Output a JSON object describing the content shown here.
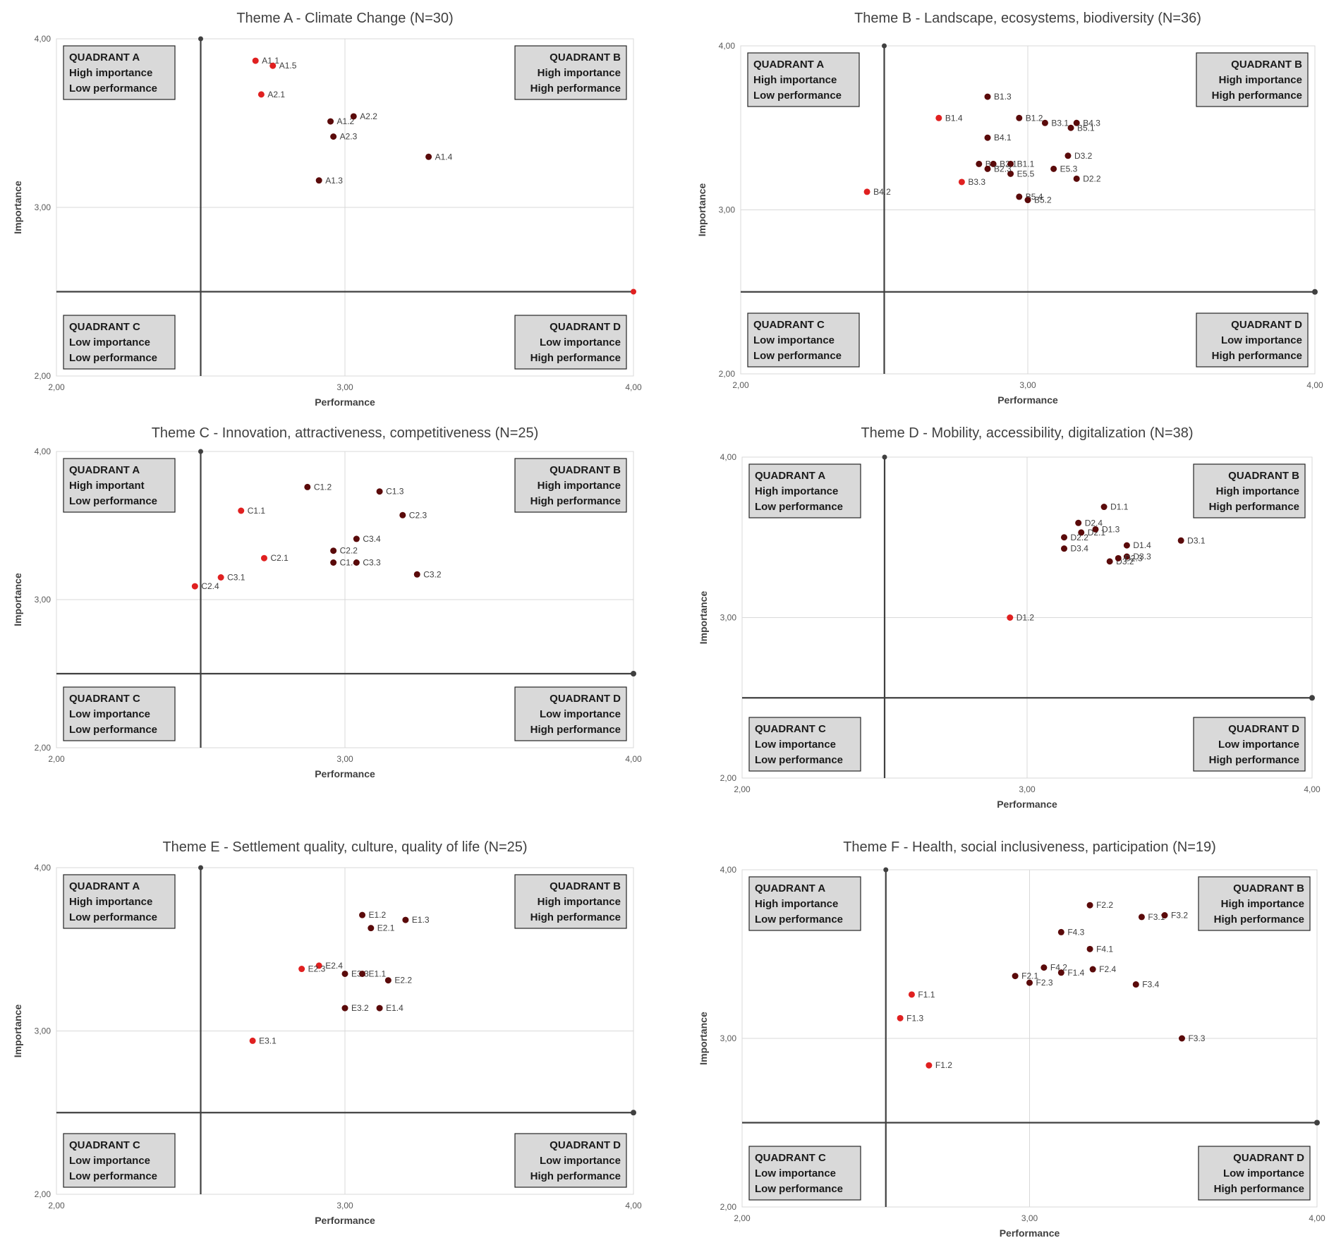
{
  "colors": {
    "dark_point": "#5a0a0a",
    "red_point": "#e02020",
    "grid": "#d9d9d9",
    "axis_line": "#404040",
    "quadrant_fill": "#d9d9d9"
  },
  "chart_data": [
    {
      "type": "scatter",
      "title": "Theme A - Climate Change (N=30)",
      "xlabel": "Performance",
      "ylabel": "Importance",
      "xlim": [
        2,
        4
      ],
      "ylim": [
        2,
        4
      ],
      "xticks": [
        "2,00",
        "3,00",
        "4,00"
      ],
      "yticks": [
        "2,00",
        "3,00",
        "4,00"
      ],
      "divider": {
        "x": 2.5,
        "y": 2.5
      },
      "quadrants": {
        "A": [
          "QUADRANT A",
          "High importance",
          "Low performance"
        ],
        "B": [
          "QUADRANT B",
          "High importance",
          "High performance"
        ],
        "C": [
          "QUADRANT C",
          "Low importance",
          "Low performance"
        ],
        "D": [
          "QUADRANT D",
          "Low importance",
          "High performance"
        ]
      },
      "points": [
        {
          "label": "A1.1",
          "x": 2.69,
          "y": 3.87,
          "color": "red"
        },
        {
          "label": "A1.5",
          "x": 2.75,
          "y": 3.84,
          "color": "red"
        },
        {
          "label": "A2.1",
          "x": 2.71,
          "y": 3.67,
          "color": "red"
        },
        {
          "label": "A1.2",
          "x": 2.95,
          "y": 3.51,
          "color": "dark"
        },
        {
          "label": "A2.2",
          "x": 3.03,
          "y": 3.54,
          "color": "dark"
        },
        {
          "label": "A2.3",
          "x": 2.96,
          "y": 3.42,
          "color": "dark"
        },
        {
          "label": "A1.4",
          "x": 3.29,
          "y": 3.3,
          "color": "dark"
        },
        {
          "label": "A1.3",
          "x": 2.91,
          "y": 3.16,
          "color": "dark"
        }
      ]
    },
    {
      "type": "scatter",
      "title": "Theme B - Landscape, ecosystems, biodiversity (N=36)",
      "xlabel": "Performance",
      "ylabel": "Importance",
      "xlim": [
        2,
        4
      ],
      "ylim": [
        2,
        4
      ],
      "xticks": [
        "2,00",
        "3,00",
        "4,00"
      ],
      "yticks": [
        "2,00",
        "3,00",
        "4,00"
      ],
      "divider": {
        "x": 2.5,
        "y": 2.5
      },
      "quadrants": {
        "A": [
          "QUADRANT A",
          "High importance",
          "Low performance"
        ],
        "B": [
          "QUADRANT B",
          "High importance",
          "High performance"
        ],
        "C": [
          "QUADRANT C",
          "Low importance",
          "Low performance"
        ],
        "D": [
          "QUADRANT D",
          "Low importance",
          "High performance"
        ]
      },
      "points": [
        {
          "label": "B1.3",
          "x": 2.86,
          "y": 3.69,
          "color": "dark"
        },
        {
          "label": "B1.4",
          "x": 2.69,
          "y": 3.56,
          "color": "red"
        },
        {
          "label": "B1.2",
          "x": 2.97,
          "y": 3.56,
          "color": "dark"
        },
        {
          "label": "B3.1",
          "x": 3.06,
          "y": 3.53,
          "color": "dark"
        },
        {
          "label": "B4.3",
          "x": 3.17,
          "y": 3.53,
          "color": "dark"
        },
        {
          "label": "B5.1",
          "x": 3.15,
          "y": 3.5,
          "color": "dark"
        },
        {
          "label": "B4.1",
          "x": 2.86,
          "y": 3.44,
          "color": "dark"
        },
        {
          "label": "D3.2",
          "x": 3.14,
          "y": 3.33,
          "color": "dark"
        },
        {
          "label": "B3...",
          "x": 2.83,
          "y": 3.28,
          "color": "dark"
        },
        {
          "label": "B2.1",
          "x": 2.88,
          "y": 3.28,
          "color": "dark"
        },
        {
          "label": "B1.1",
          "x": 2.94,
          "y": 3.28,
          "color": "dark"
        },
        {
          "label": "E5.3",
          "x": 3.09,
          "y": 3.25,
          "color": "dark"
        },
        {
          "label": "D2.2",
          "x": 3.17,
          "y": 3.19,
          "color": "dark"
        },
        {
          "label": "E5.5",
          "x": 2.94,
          "y": 3.22,
          "color": "dark"
        },
        {
          "label": "B2.3",
          "x": 2.86,
          "y": 3.25,
          "color": "dark"
        },
        {
          "label": "B3.3",
          "x": 2.77,
          "y": 3.17,
          "color": "red"
        },
        {
          "label": "B5.4",
          "x": 2.97,
          "y": 3.08,
          "color": "dark"
        },
        {
          "label": "B5.2",
          "x": 3.0,
          "y": 3.06,
          "color": "dark"
        },
        {
          "label": "B4.2",
          "x": 2.44,
          "y": 3.11,
          "color": "red"
        }
      ]
    },
    {
      "type": "scatter",
      "title": "Theme C - Innovation, attractiveness, competitiveness (N=25)",
      "xlabel": "Performance",
      "ylabel": "Importance",
      "xlim": [
        2,
        4
      ],
      "ylim": [
        2,
        4
      ],
      "xticks": [
        "2,00",
        "3,00",
        "4,00"
      ],
      "yticks": [
        "2,00",
        "3,00",
        "4,00"
      ],
      "divider": {
        "x": 2.5,
        "y": 2.5
      },
      "quadrants": {
        "A": [
          "QUADRANT A",
          "High important",
          "Low performance"
        ],
        "B": [
          "QUADRANT B",
          "High importance",
          "High performance"
        ],
        "C": [
          "QUADRANT C",
          "Low importance",
          "Low performance"
        ],
        "D": [
          "QUADRANT D",
          "Low importance",
          "High performance"
        ]
      },
      "points": [
        {
          "label": "C1.2",
          "x": 2.87,
          "y": 3.76,
          "color": "dark"
        },
        {
          "label": "C1.3",
          "x": 3.12,
          "y": 3.73,
          "color": "dark"
        },
        {
          "label": "C1.1",
          "x": 2.64,
          "y": 3.6,
          "color": "red"
        },
        {
          "label": "C2.3",
          "x": 3.2,
          "y": 3.57,
          "color": "dark"
        },
        {
          "label": "C3.4",
          "x": 3.04,
          "y": 3.41,
          "color": "dark"
        },
        {
          "label": "C2.2",
          "x": 2.96,
          "y": 3.33,
          "color": "dark"
        },
        {
          "label": "C2.1",
          "x": 2.72,
          "y": 3.28,
          "color": "red"
        },
        {
          "label": "C1.4",
          "x": 2.96,
          "y": 3.25,
          "color": "dark"
        },
        {
          "label": "C3.3",
          "x": 3.04,
          "y": 3.25,
          "color": "dark"
        },
        {
          "label": "C3.2",
          "x": 3.25,
          "y": 3.17,
          "color": "dark"
        },
        {
          "label": "C3.1",
          "x": 2.57,
          "y": 3.15,
          "color": "red"
        },
        {
          "label": "C2.4",
          "x": 2.48,
          "y": 3.09,
          "color": "red"
        }
      ]
    },
    {
      "type": "scatter",
      "title": "Theme D - Mobility, accessibility, digitalization (N=38)",
      "xlabel": "Performance",
      "ylabel": "Importance",
      "xlim": [
        2,
        4
      ],
      "ylim": [
        2,
        4
      ],
      "xticks": [
        "2,00",
        "3,00",
        "4,00"
      ],
      "yticks": [
        "2,00",
        "3,00",
        "4,00"
      ],
      "divider": {
        "x": 2.5,
        "y": 2.5
      },
      "quadrants": {
        "A": [
          "QUADRANT A",
          "High importance",
          "Low performance"
        ],
        "B": [
          "QUADRANT B",
          "High importance",
          "High performance"
        ],
        "C": [
          "QUADRANT C",
          "Low importance",
          "Low performance"
        ],
        "D": [
          "QUADRANT D",
          "Low importance",
          "High performance"
        ]
      },
      "points": [
        {
          "label": "D1.1",
          "x": 3.27,
          "y": 3.69,
          "color": "dark"
        },
        {
          "label": "D2.4",
          "x": 3.18,
          "y": 3.59,
          "color": "dark"
        },
        {
          "label": "D2.1",
          "x": 3.19,
          "y": 3.53,
          "color": "dark"
        },
        {
          "label": "D1.3",
          "x": 3.24,
          "y": 3.55,
          "color": "dark"
        },
        {
          "label": "D1.4",
          "x": 3.35,
          "y": 3.45,
          "color": "dark"
        },
        {
          "label": "D3.1",
          "x": 3.54,
          "y": 3.48,
          "color": "dark"
        },
        {
          "label": "D2.2",
          "x": 3.13,
          "y": 3.5,
          "color": "dark"
        },
        {
          "label": "D3.4",
          "x": 3.13,
          "y": 3.43,
          "color": "dark"
        },
        {
          "label": "D3.3",
          "x": 3.35,
          "y": 3.38,
          "color": "dark"
        },
        {
          "label": "D3.2",
          "x": 3.29,
          "y": 3.35,
          "color": "dark"
        },
        {
          "label": "D2.3",
          "x": 3.32,
          "y": 3.37,
          "color": "dark"
        },
        {
          "label": "D1.2",
          "x": 2.94,
          "y": 3.0,
          "color": "red"
        }
      ]
    },
    {
      "type": "scatter",
      "title": "Theme E - Settlement quality, culture, quality of life (N=25)",
      "xlabel": "Performance",
      "ylabel": "Importance",
      "xlim": [
        2,
        4
      ],
      "ylim": [
        2,
        4
      ],
      "xticks": [
        "2,00",
        "3,00",
        "4,00"
      ],
      "yticks": [
        "2,00",
        "3,00",
        "4,00"
      ],
      "divider": {
        "x": 2.5,
        "y": 2.5
      },
      "quadrants": {
        "A": [
          "QUADRANT A",
          "High importance",
          "Low performance"
        ],
        "B": [
          "QUADRANT B",
          "High importance",
          "High performance"
        ],
        "C": [
          "QUADRANT C",
          "Low importance",
          "Low performance"
        ],
        "D": [
          "QUADRANT D",
          "Low importance",
          "High performance"
        ]
      },
      "points": [
        {
          "label": "E1.2",
          "x": 3.06,
          "y": 3.71,
          "color": "dark"
        },
        {
          "label": "E1.3",
          "x": 3.21,
          "y": 3.68,
          "color": "dark"
        },
        {
          "label": "E2.1",
          "x": 3.09,
          "y": 3.63,
          "color": "dark"
        },
        {
          "label": "E2.4",
          "x": 2.91,
          "y": 3.4,
          "color": "red"
        },
        {
          "label": "E2.3",
          "x": 2.85,
          "y": 3.38,
          "color": "red"
        },
        {
          "label": "E3.3",
          "x": 3.0,
          "y": 3.35,
          "color": "dark"
        },
        {
          "label": "E1.1",
          "x": 3.06,
          "y": 3.35,
          "color": "dark"
        },
        {
          "label": "E2.2",
          "x": 3.15,
          "y": 3.31,
          "color": "dark"
        },
        {
          "label": "E3.2",
          "x": 3.0,
          "y": 3.14,
          "color": "dark"
        },
        {
          "label": "E1.4",
          "x": 3.12,
          "y": 3.14,
          "color": "dark"
        },
        {
          "label": "E3.1",
          "x": 2.68,
          "y": 2.94,
          "color": "red"
        }
      ]
    },
    {
      "type": "scatter",
      "title": "Theme F - Health, social inclusiveness, participation (N=19)",
      "xlabel": "Performance",
      "ylabel": "Importance",
      "xlim": [
        2,
        4
      ],
      "ylim": [
        2,
        4
      ],
      "xticks": [
        "2,00",
        "3,00",
        "4,00"
      ],
      "yticks": [
        "2,00",
        "3,00",
        "4,00"
      ],
      "divider": {
        "x": 2.5,
        "y": 2.5
      },
      "quadrants": {
        "A": [
          "QUADRANT A",
          "High importance",
          "Low performance"
        ],
        "B": [
          "QUADRANT B",
          "High importance",
          "High performance"
        ],
        "C": [
          "QUADRANT C",
          "Low importance",
          "Low performance"
        ],
        "D": [
          "QUADRANT D",
          "Low importance",
          "High performance"
        ]
      },
      "points": [
        {
          "label": "F2.2",
          "x": 3.21,
          "y": 3.79,
          "color": "dark"
        },
        {
          "label": "F3.1",
          "x": 3.39,
          "y": 3.72,
          "color": "dark"
        },
        {
          "label": "F3.2",
          "x": 3.47,
          "y": 3.73,
          "color": "dark"
        },
        {
          "label": "F4.3",
          "x": 3.11,
          "y": 3.63,
          "color": "dark"
        },
        {
          "label": "F4.1",
          "x": 3.21,
          "y": 3.53,
          "color": "dark"
        },
        {
          "label": "F4.2",
          "x": 3.05,
          "y": 3.42,
          "color": "dark"
        },
        {
          "label": "F2.1",
          "x": 2.95,
          "y": 3.37,
          "color": "dark"
        },
        {
          "label": "F1.4",
          "x": 3.11,
          "y": 3.39,
          "color": "dark"
        },
        {
          "label": "F2.4",
          "x": 3.22,
          "y": 3.41,
          "color": "dark"
        },
        {
          "label": "F2.3",
          "x": 3.0,
          "y": 3.33,
          "color": "dark"
        },
        {
          "label": "F3.4",
          "x": 3.37,
          "y": 3.32,
          "color": "dark"
        },
        {
          "label": "F1.1",
          "x": 2.59,
          "y": 3.26,
          "color": "red"
        },
        {
          "label": "F1.3",
          "x": 2.55,
          "y": 3.12,
          "color": "red"
        },
        {
          "label": "F3.3",
          "x": 3.53,
          "y": 3.0,
          "color": "dark"
        },
        {
          "label": "F1.2",
          "x": 2.65,
          "y": 2.84,
          "color": "red"
        }
      ]
    }
  ]
}
